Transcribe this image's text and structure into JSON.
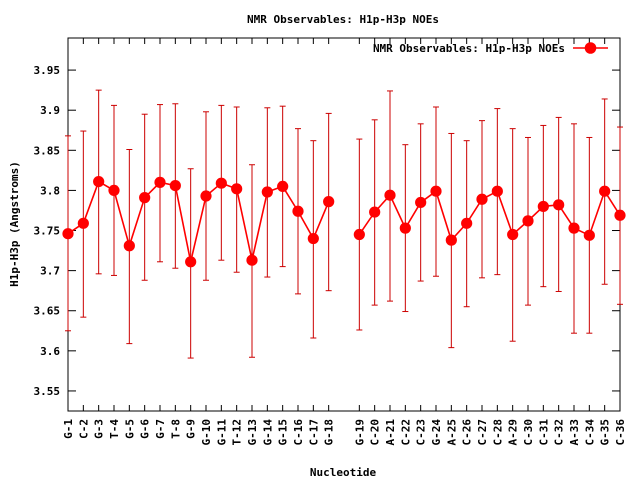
{
  "chart_data": {
    "type": "line",
    "title": "NMR Observables: H1p-H3p NOEs",
    "xlabel": "Nucleotide",
    "ylabel": "H1p-H3p (Angstroms)",
    "ylim": [
      3.525,
      3.99
    ],
    "y_ticks": [
      "3.55",
      "3.6",
      "3.65",
      "3.7",
      "3.75",
      "3.8",
      "3.85",
      "3.9",
      "3.95"
    ],
    "grid": false,
    "legend_position": "top-right",
    "series": [
      {
        "name": "NMR Observables: H1p-H3p NOEs",
        "color": "#ff0000",
        "segments": [
          [
            {
              "label": "G-1",
              "y": 3.746,
              "low": 3.625,
              "high": 3.868
            },
            {
              "label": "C-2",
              "y": 3.759,
              "low": 3.642,
              "high": 3.874
            },
            {
              "label": "G-3",
              "y": 3.811,
              "low": 3.696,
              "high": 3.925
            },
            {
              "label": "T-4",
              "y": 3.8,
              "low": 3.694,
              "high": 3.906
            },
            {
              "label": "G-5",
              "y": 3.731,
              "low": 3.609,
              "high": 3.851
            },
            {
              "label": "G-6",
              "y": 3.791,
              "low": 3.688,
              "high": 3.895
            },
            {
              "label": "G-7",
              "y": 3.81,
              "low": 3.711,
              "high": 3.907
            },
            {
              "label": "T-8",
              "y": 3.806,
              "low": 3.703,
              "high": 3.908
            },
            {
              "label": "G-9",
              "y": 3.711,
              "low": 3.591,
              "high": 3.827
            },
            {
              "label": "G-10",
              "y": 3.793,
              "low": 3.688,
              "high": 3.898
            },
            {
              "label": "G-11",
              "y": 3.809,
              "low": 3.713,
              "high": 3.906
            },
            {
              "label": "T-12",
              "y": 3.802,
              "low": 3.698,
              "high": 3.904
            },
            {
              "label": "G-13",
              "y": 3.713,
              "low": 3.592,
              "high": 3.832
            },
            {
              "label": "G-14",
              "y": 3.798,
              "low": 3.692,
              "high": 3.903
            },
            {
              "label": "G-15",
              "y": 3.805,
              "low": 3.705,
              "high": 3.905
            },
            {
              "label": "C-16",
              "y": 3.774,
              "low": 3.671,
              "high": 3.877
            },
            {
              "label": "C-17",
              "y": 3.74,
              "low": 3.616,
              "high": 3.862
            },
            {
              "label": "G-18",
              "y": 3.786,
              "low": 3.675,
              "high": 3.896
            }
          ],
          [
            {
              "label": "G-19",
              "y": 3.745,
              "low": 3.626,
              "high": 3.864
            },
            {
              "label": "C-20",
              "y": 3.773,
              "low": 3.657,
              "high": 3.888
            },
            {
              "label": "A-21",
              "y": 3.794,
              "low": 3.662,
              "high": 3.924
            },
            {
              "label": "C-22",
              "y": 3.753,
              "low": 3.649,
              "high": 3.857
            },
            {
              "label": "C-23",
              "y": 3.785,
              "low": 3.687,
              "high": 3.883
            },
            {
              "label": "G-24",
              "y": 3.799,
              "low": 3.693,
              "high": 3.904
            },
            {
              "label": "A-25",
              "y": 3.738,
              "low": 3.604,
              "high": 3.871
            },
            {
              "label": "C-26",
              "y": 3.759,
              "low": 3.655,
              "high": 3.862
            },
            {
              "label": "C-27",
              "y": 3.789,
              "low": 3.691,
              "high": 3.887
            },
            {
              "label": "C-28",
              "y": 3.799,
              "low": 3.695,
              "high": 3.902
            },
            {
              "label": "A-29",
              "y": 3.745,
              "low": 3.612,
              "high": 3.877
            },
            {
              "label": "C-30",
              "y": 3.762,
              "low": 3.657,
              "high": 3.866
            },
            {
              "label": "C-31",
              "y": 3.78,
              "low": 3.68,
              "high": 3.881
            },
            {
              "label": "C-32",
              "y": 3.782,
              "low": 3.674,
              "high": 3.891
            },
            {
              "label": "A-33",
              "y": 3.753,
              "low": 3.622,
              "high": 3.883
            },
            {
              "label": "C-34",
              "y": 3.744,
              "low": 3.622,
              "high": 3.866
            },
            {
              "label": "G-35",
              "y": 3.799,
              "low": 3.683,
              "high": 3.914
            },
            {
              "label": "C-36",
              "y": 3.769,
              "low": 3.658,
              "high": 3.879
            }
          ]
        ]
      }
    ]
  }
}
